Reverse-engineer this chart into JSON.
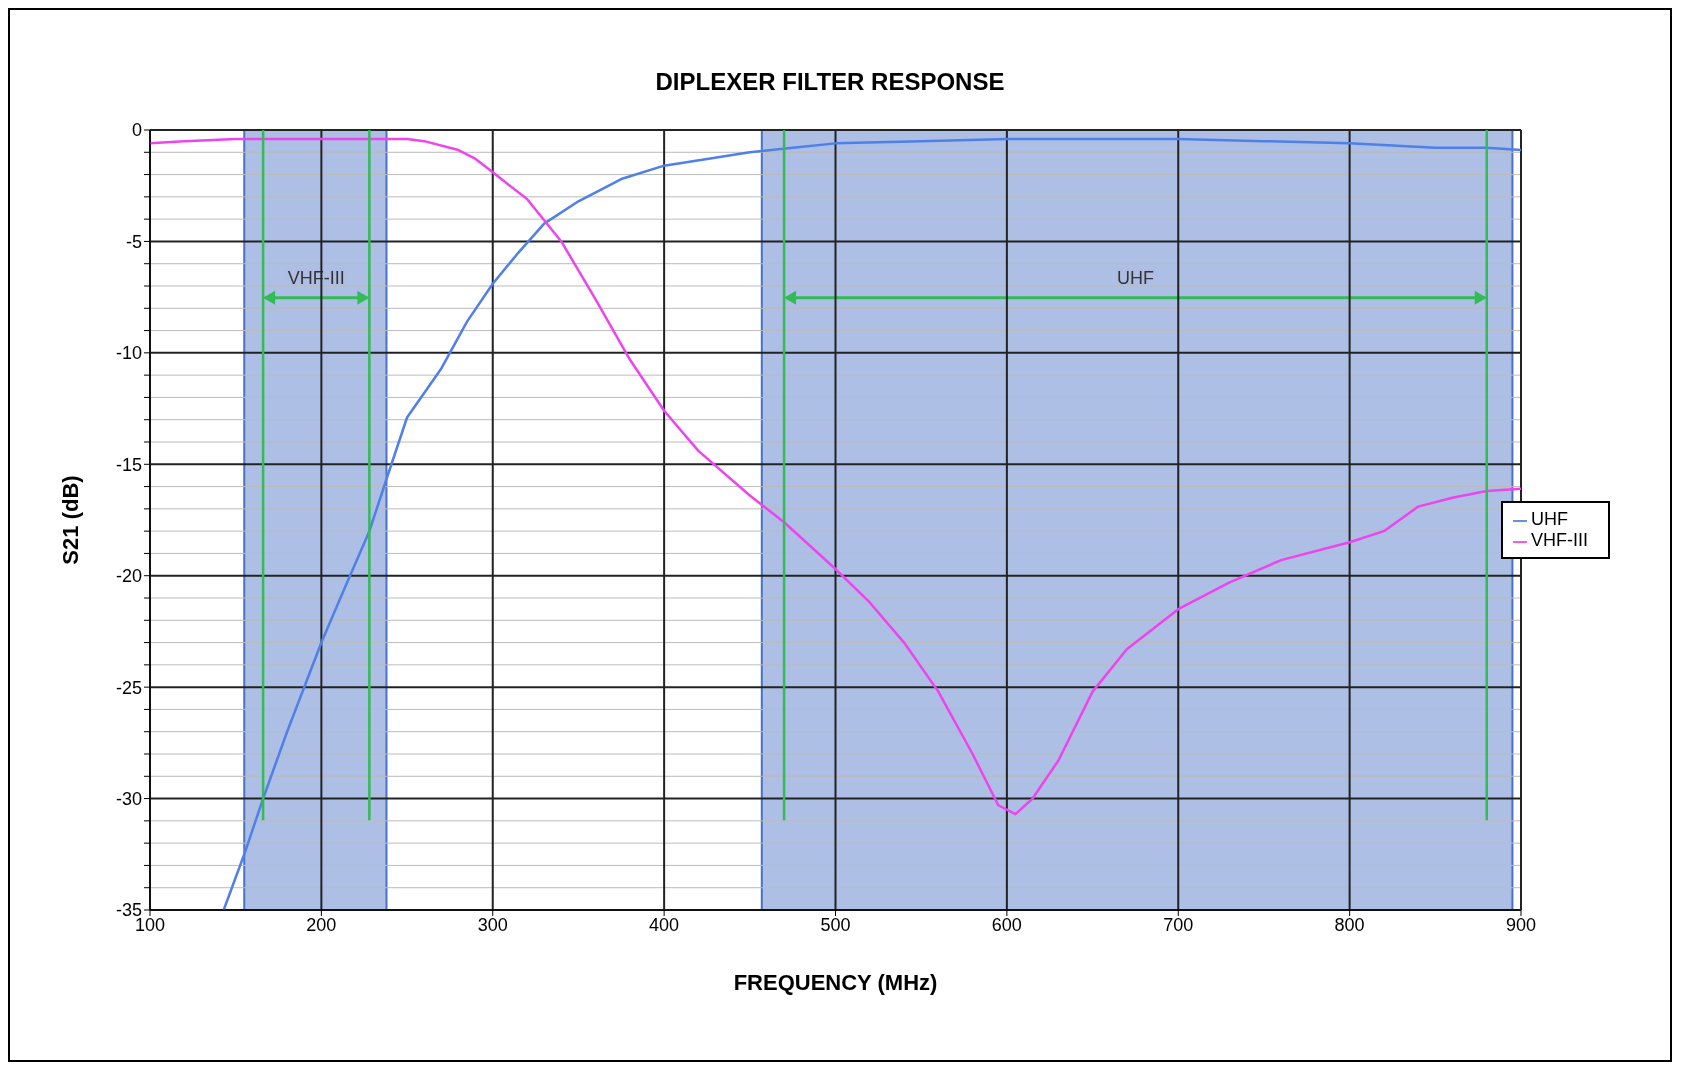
{
  "chart_data": {
    "type": "line",
    "title": "DIPLEXER FILTER RESPONSE",
    "xlabel": "FREQUENCY (MHz)",
    "ylabel": "S21 (dB)",
    "xlim": [
      100,
      900
    ],
    "xticks": [
      100,
      200,
      300,
      400,
      500,
      600,
      700,
      800,
      900
    ],
    "ylim": [
      -35,
      0
    ],
    "yticks": [
      -35,
      {
        "value": -34,
        "label": null
      },
      {
        "value": -33,
        "label": null
      },
      {
        "value": -32,
        "label": null
      },
      {
        "value": -31,
        "label": null
      },
      -30,
      {
        "value": -29,
        "label": null
      },
      {
        "value": -28,
        "label": null
      },
      {
        "value": -27,
        "label": null
      },
      {
        "value": -26,
        "label": null
      },
      -25,
      {
        "value": -24,
        "label": null
      },
      {
        "value": -23,
        "label": null
      },
      {
        "value": -22,
        "label": null
      },
      {
        "value": -21,
        "label": null
      },
      -20,
      {
        "value": -19,
        "label": null
      },
      {
        "value": -18,
        "label": null
      },
      {
        "value": -17,
        "label": null
      },
      {
        "value": -16,
        "label": null
      },
      -15,
      {
        "value": -14,
        "label": null
      },
      {
        "value": -13,
        "label": null
      },
      {
        "value": -12,
        "label": null
      },
      {
        "value": -11,
        "label": null
      },
      -10,
      {
        "value": -9,
        "label": null
      },
      {
        "value": -8,
        "label": null
      },
      {
        "value": -7,
        "label": null
      },
      {
        "value": -6,
        "label": null
      },
      -5,
      {
        "value": -4,
        "label": null
      },
      {
        "value": -3,
        "label": null
      },
      {
        "value": -2,
        "label": null
      },
      {
        "value": -1,
        "label": null
      },
      0
    ],
    "grid": true,
    "legend": "right",
    "marker": "none",
    "line_style": "solid",
    "series": [
      {
        "name": "UHF",
        "color": "#4f7fe8",
        "x": [
          143,
          155,
          166,
          180,
          200,
          215,
          228,
          240,
          250,
          260,
          270,
          285,
          300,
          315,
          330,
          350,
          375,
          400,
          425,
          450,
          475,
          500,
          550,
          600,
          650,
          700,
          750,
          800,
          850,
          880,
          900
        ],
        "values": [
          -35,
          -32.5,
          -30,
          -27,
          -23,
          -20.3,
          -18,
          -15.2,
          -12.9,
          -11.8,
          -10.7,
          -8.6,
          -6.9,
          -5.5,
          -4.2,
          -3.2,
          -2.2,
          -1.6,
          -1.3,
          -1.0,
          -0.8,
          -0.6,
          -0.5,
          -0.4,
          -0.4,
          -0.4,
          -0.5,
          -0.6,
          -0.8,
          -0.8,
          -0.9
        ]
      },
      {
        "name": "VHF-III",
        "color": "#ee44ee",
        "x": [
          100,
          120,
          150,
          200,
          250,
          260,
          280,
          290,
          300,
          320,
          340,
          360,
          380,
          400,
          420,
          450,
          470,
          500,
          520,
          540,
          560,
          580,
          595,
          605,
          615,
          630,
          650,
          670,
          700,
          730,
          760,
          800,
          820,
          840,
          860,
          880,
          900
        ],
        "values": [
          -0.6,
          -0.5,
          -0.4,
          -0.4,
          -0.4,
          -0.5,
          -0.9,
          -1.3,
          -1.9,
          -3.1,
          -5.0,
          -7.6,
          -10.3,
          -12.6,
          -14.4,
          -16.4,
          -17.6,
          -19.7,
          -21.2,
          -23,
          -25.2,
          -28,
          -30.3,
          -30.7,
          -30,
          -28.3,
          -25.2,
          -23.3,
          -21.5,
          -20.3,
          -19.3,
          -18.5,
          -18,
          -16.9,
          -16.5,
          -16.2,
          -16.1
        ]
      }
    ],
    "bands": [
      {
        "axis": "x",
        "from": 155,
        "to": 238,
        "color": "#4a72c4"
      },
      {
        "axis": "x",
        "from": 457,
        "to": 895,
        "color": "#4a72c4"
      }
    ],
    "ref_lines": [
      {
        "axis": "x",
        "value": 166,
        "color": "#33bb55"
      },
      {
        "axis": "x",
        "value": 228,
        "color": "#33bb55"
      },
      {
        "axis": "x",
        "value": 470,
        "color": "#33bb55"
      },
      {
        "axis": "x",
        "value": 880,
        "color": "#33bb55"
      }
    ],
    "annotations": [
      "VHF-III",
      "UHF"
    ]
  }
}
